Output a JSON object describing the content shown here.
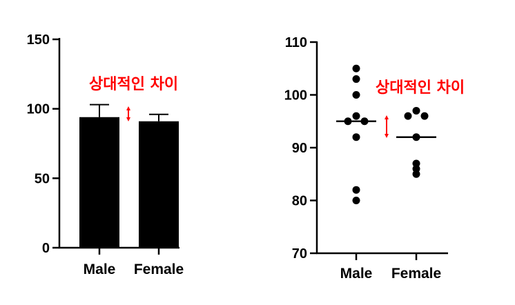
{
  "chart_data": [
    {
      "type": "bar",
      "categories": [
        "Male",
        "Female"
      ],
      "values": [
        94,
        91
      ],
      "error_upper": [
        103,
        96
      ],
      "yticks": [
        0,
        50,
        100,
        150
      ],
      "ylim": [
        0,
        150
      ],
      "grid": false,
      "bar_color": "#000000",
      "annotation": {
        "text": "상대적인 차이",
        "color": "#ff0000"
      }
    },
    {
      "type": "scatter",
      "categories": [
        "Male",
        "Female"
      ],
      "points": [
        [
          105,
          103,
          100,
          96,
          95,
          95,
          92,
          82,
          80
        ],
        [
          97,
          96,
          96,
          92,
          87,
          86,
          85
        ]
      ],
      "means": [
        95,
        92
      ],
      "yticks": [
        70,
        80,
        90,
        100,
        110
      ],
      "ylim": [
        70,
        110
      ],
      "grid": false,
      "point_color": "#000000",
      "annotation": {
        "text": "상대적인 차이",
        "color": "#ff0000"
      }
    }
  ]
}
